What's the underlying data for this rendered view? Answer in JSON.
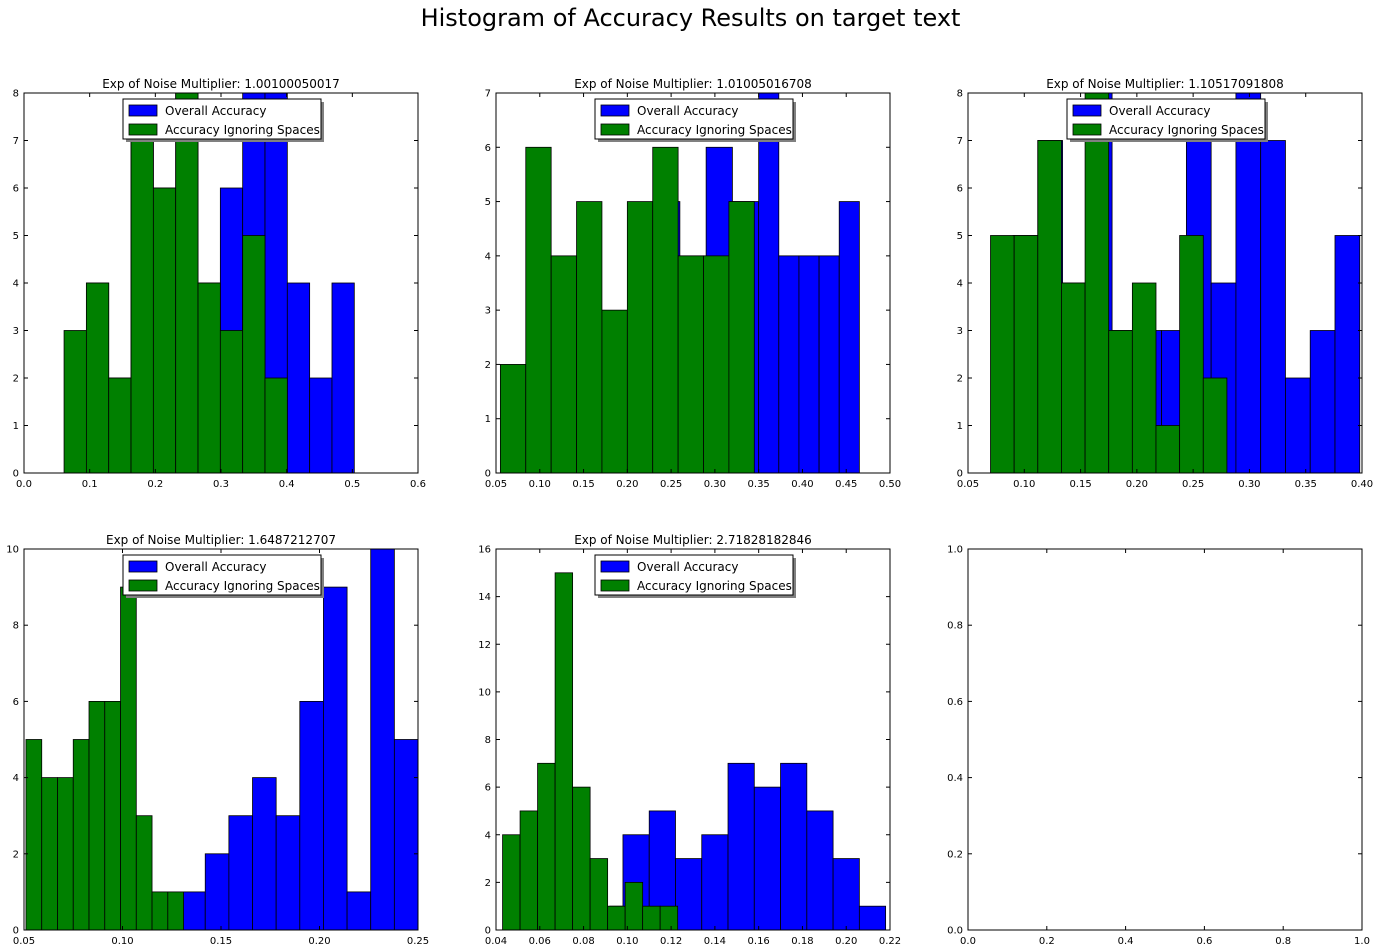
{
  "figure": {
    "suptitle": "Histogram of Accuracy Results on target text"
  },
  "colors": {
    "overall": "#0000ff",
    "ignoring": "#008000",
    "edge": "#000000"
  },
  "chart_data": [
    {
      "type": "bar",
      "title": "Exp of Noise Multiplier: 1.00100050017",
      "xlim": [
        0,
        0.6
      ],
      "ylim": [
        0,
        8
      ],
      "xticks": [
        0.0,
        0.1,
        0.2,
        0.3,
        0.4,
        0.5,
        0.6
      ],
      "xtick_labels": [
        "0.0",
        "0.1",
        "0.2",
        "0.3",
        "0.4",
        "0.5",
        "0.6"
      ],
      "yticks": [
        0,
        1,
        2,
        3,
        4,
        5,
        6,
        7,
        8
      ],
      "ytick_labels": [
        "0",
        "1",
        "2",
        "3",
        "4",
        "5",
        "6",
        "7",
        "8"
      ],
      "legend": {
        "placement": "upper-center",
        "entries": [
          "Overall Accuracy",
          "Accuracy Ignoring Spaces"
        ]
      },
      "series": [
        {
          "name": "Overall Accuracy",
          "bins": [
            [
              0.095,
              0.129,
              4
            ],
            [
              0.129,
              0.163,
              2
            ],
            [
              0.163,
              0.197,
              7
            ],
            [
              0.197,
              0.231,
              6
            ],
            [
              0.231,
              0.265,
              8
            ],
            [
              0.265,
              0.299,
              4
            ],
            [
              0.299,
              0.333,
              6
            ],
            [
              0.333,
              0.367,
              8
            ],
            [
              0.367,
              0.401,
              8
            ],
            [
              0.401,
              0.435,
              4
            ],
            [
              0.435,
              0.469,
              2
            ],
            [
              0.469,
              0.503,
              4
            ]
          ]
        },
        {
          "name": "Accuracy Ignoring Spaces",
          "bins": [
            [
              0.061,
              0.095,
              3
            ],
            [
              0.095,
              0.129,
              4
            ],
            [
              0.129,
              0.163,
              2
            ],
            [
              0.163,
              0.197,
              7
            ],
            [
              0.197,
              0.231,
              6
            ],
            [
              0.231,
              0.265,
              8
            ],
            [
              0.265,
              0.299,
              4
            ],
            [
              0.299,
              0.333,
              3
            ],
            [
              0.333,
              0.367,
              5
            ],
            [
              0.367,
              0.401,
              2
            ]
          ]
        }
      ]
    },
    {
      "type": "bar",
      "title": "Exp of Noise Multiplier: 1.01005016708",
      "xlim": [
        0.05,
        0.5
      ],
      "ylim": [
        0,
        7
      ],
      "xticks": [
        0.05,
        0.1,
        0.15,
        0.2,
        0.25,
        0.3,
        0.35,
        0.4,
        0.45,
        0.5
      ],
      "xtick_labels": [
        "0.05",
        "0.10",
        "0.15",
        "0.20",
        "0.25",
        "0.30",
        "0.35",
        "0.40",
        "0.45",
        "0.50"
      ],
      "yticks": [
        0,
        1,
        2,
        3,
        4,
        5,
        6,
        7
      ],
      "ytick_labels": [
        "0",
        "1",
        "2",
        "3",
        "4",
        "5",
        "6",
        "7"
      ],
      "legend": {
        "placement": "upper-center",
        "entries": [
          "Overall Accuracy",
          "Accuracy Ignoring Spaces"
        ]
      },
      "series": [
        {
          "name": "Overall Accuracy",
          "bins": [
            [
              0.23,
              0.26,
              5
            ],
            [
              0.26,
              0.29,
              4
            ],
            [
              0.29,
              0.32,
              6
            ],
            [
              0.32,
              0.35,
              5
            ],
            [
              0.35,
              0.373,
              7
            ],
            [
              0.373,
              0.396,
              4
            ],
            [
              0.396,
              0.419,
              4
            ],
            [
              0.419,
              0.442,
              4
            ],
            [
              0.442,
              0.465,
              5
            ]
          ]
        },
        {
          "name": "Accuracy Ignoring Spaces",
          "bins": [
            [
              0.055,
              0.084,
              2
            ],
            [
              0.084,
              0.113,
              6
            ],
            [
              0.113,
              0.142,
              4
            ],
            [
              0.142,
              0.171,
              5
            ],
            [
              0.171,
              0.2,
              3
            ],
            [
              0.2,
              0.229,
              5
            ],
            [
              0.229,
              0.258,
              6
            ],
            [
              0.258,
              0.287,
              4
            ],
            [
              0.287,
              0.316,
              4
            ],
            [
              0.316,
              0.345,
              5
            ]
          ]
        }
      ]
    },
    {
      "type": "bar",
      "title": "Exp of Noise Multiplier: 1.10517091808",
      "xlim": [
        0.05,
        0.4
      ],
      "ylim": [
        0,
        8
      ],
      "xticks": [
        0.05,
        0.1,
        0.15,
        0.2,
        0.25,
        0.3,
        0.35,
        0.4
      ],
      "xtick_labels": [
        "0.05",
        "0.10",
        "0.15",
        "0.20",
        "0.25",
        "0.30",
        "0.35",
        "0.40"
      ],
      "yticks": [
        0,
        1,
        2,
        3,
        4,
        5,
        6,
        7,
        8
      ],
      "ytick_labels": [
        "0",
        "1",
        "2",
        "3",
        "4",
        "5",
        "6",
        "7",
        "8"
      ],
      "legend": {
        "placement": "upper-center",
        "entries": [
          "Overall Accuracy",
          "Accuracy Ignoring Spaces"
        ]
      },
      "series": [
        {
          "name": "Overall Accuracy",
          "bins": [
            [
              0.09,
              0.112,
              5
            ],
            [
              0.112,
              0.134,
              7
            ],
            [
              0.134,
              0.156,
              4
            ],
            [
              0.156,
              0.178,
              8
            ],
            [
              0.178,
              0.2,
              3
            ],
            [
              0.2,
              0.222,
              3
            ],
            [
              0.222,
              0.244,
              3
            ],
            [
              0.244,
              0.266,
              7
            ],
            [
              0.266,
              0.288,
              4
            ],
            [
              0.288,
              0.31,
              8
            ],
            [
              0.31,
              0.332,
              7
            ],
            [
              0.332,
              0.354,
              2
            ],
            [
              0.354,
              0.376,
              3
            ],
            [
              0.376,
              0.398,
              5
            ]
          ]
        },
        {
          "name": "Accuracy Ignoring Spaces",
          "bins": [
            [
              0.07,
              0.091,
              5
            ],
            [
              0.091,
              0.112,
              5
            ],
            [
              0.112,
              0.133,
              7
            ],
            [
              0.133,
              0.154,
              4
            ],
            [
              0.154,
              0.175,
              8
            ],
            [
              0.175,
              0.196,
              3
            ],
            [
              0.196,
              0.217,
              4
            ],
            [
              0.217,
              0.238,
              1
            ],
            [
              0.238,
              0.259,
              5
            ],
            [
              0.259,
              0.28,
              2
            ]
          ]
        }
      ]
    },
    {
      "type": "bar",
      "title": "Exp of Noise Multiplier: 1.6487212707",
      "xlim": [
        0.05,
        0.25
      ],
      "ylim": [
        0,
        10
      ],
      "xticks": [
        0.05,
        0.1,
        0.15,
        0.2,
        0.25
      ],
      "xtick_labels": [
        "0.05",
        "0.10",
        "0.15",
        "0.20",
        "0.25"
      ],
      "yticks": [
        0,
        2,
        4,
        6,
        8,
        10
      ],
      "ytick_labels": [
        "0",
        "2",
        "4",
        "6",
        "8",
        "10"
      ],
      "legend": {
        "placement": "upper-center",
        "entries": [
          "Overall Accuracy",
          "Accuracy Ignoring Spaces"
        ]
      },
      "series": [
        {
          "name": "Overall Accuracy",
          "bins": [
            [
              0.13,
              0.142,
              1
            ],
            [
              0.142,
              0.154,
              2
            ],
            [
              0.154,
              0.166,
              3
            ],
            [
              0.166,
              0.178,
              4
            ],
            [
              0.178,
              0.19,
              3
            ],
            [
              0.19,
              0.202,
              6
            ],
            [
              0.202,
              0.214,
              9
            ],
            [
              0.214,
              0.226,
              1
            ],
            [
              0.226,
              0.238,
              10
            ],
            [
              0.238,
              0.25,
              5
            ]
          ]
        },
        {
          "name": "Accuracy Ignoring Spaces",
          "bins": [
            [
              0.051,
              0.059,
              5
            ],
            [
              0.059,
              0.067,
              4
            ],
            [
              0.067,
              0.075,
              4
            ],
            [
              0.075,
              0.083,
              5
            ],
            [
              0.083,
              0.091,
              6
            ],
            [
              0.091,
              0.099,
              6
            ],
            [
              0.099,
              0.107,
              9
            ],
            [
              0.107,
              0.115,
              3
            ],
            [
              0.115,
              0.123,
              1
            ],
            [
              0.123,
              0.131,
              1
            ]
          ]
        }
      ]
    },
    {
      "type": "bar",
      "title": "Exp of Noise Multiplier: 2.71828182846",
      "xlim": [
        0.04,
        0.22
      ],
      "ylim": [
        0,
        16
      ],
      "xticks": [
        0.04,
        0.06,
        0.08,
        0.1,
        0.12,
        0.14,
        0.16,
        0.18,
        0.2,
        0.22
      ],
      "xtick_labels": [
        "0.04",
        "0.06",
        "0.08",
        "0.10",
        "0.12",
        "0.14",
        "0.16",
        "0.18",
        "0.20",
        "0.22"
      ],
      "yticks": [
        0,
        2,
        4,
        6,
        8,
        10,
        12,
        14,
        16
      ],
      "ytick_labels": [
        "0",
        "2",
        "4",
        "6",
        "8",
        "10",
        "12",
        "14",
        "16"
      ],
      "legend": {
        "placement": "upper-center",
        "entries": [
          "Overall Accuracy",
          "Accuracy Ignoring Spaces"
        ]
      },
      "series": [
        {
          "name": "Overall Accuracy",
          "bins": [
            [
              0.092,
              0.098,
              1
            ],
            [
              0.098,
              0.11,
              4
            ],
            [
              0.11,
              0.122,
              5
            ],
            [
              0.122,
              0.134,
              3
            ],
            [
              0.134,
              0.146,
              4
            ],
            [
              0.146,
              0.158,
              7
            ],
            [
              0.158,
              0.17,
              6
            ],
            [
              0.17,
              0.182,
              7
            ],
            [
              0.182,
              0.194,
              5
            ],
            [
              0.194,
              0.206,
              3
            ],
            [
              0.206,
              0.218,
              1
            ]
          ]
        },
        {
          "name": "Accuracy Ignoring Spaces",
          "bins": [
            [
              0.043,
              0.051,
              4
            ],
            [
              0.051,
              0.059,
              5
            ],
            [
              0.059,
              0.067,
              7
            ],
            [
              0.067,
              0.075,
              15
            ],
            [
              0.075,
              0.083,
              6
            ],
            [
              0.083,
              0.091,
              3
            ],
            [
              0.091,
              0.099,
              1
            ],
            [
              0.099,
              0.107,
              2
            ],
            [
              0.107,
              0.115,
              1
            ],
            [
              0.115,
              0.123,
              1
            ]
          ]
        }
      ]
    },
    {
      "type": "bar",
      "title": "",
      "xlim": [
        0,
        1
      ],
      "ylim": [
        0,
        1
      ],
      "xticks": [
        0.0,
        0.2,
        0.4,
        0.6,
        0.8,
        1.0
      ],
      "xtick_labels": [
        "0.0",
        "0.2",
        "0.4",
        "0.6",
        "0.8",
        "1.0"
      ],
      "yticks": [
        0.0,
        0.2,
        0.4,
        0.6,
        0.8,
        1.0
      ],
      "ytick_labels": [
        "0.0",
        "0.2",
        "0.4",
        "0.6",
        "0.8",
        "1.0"
      ],
      "series": []
    }
  ]
}
